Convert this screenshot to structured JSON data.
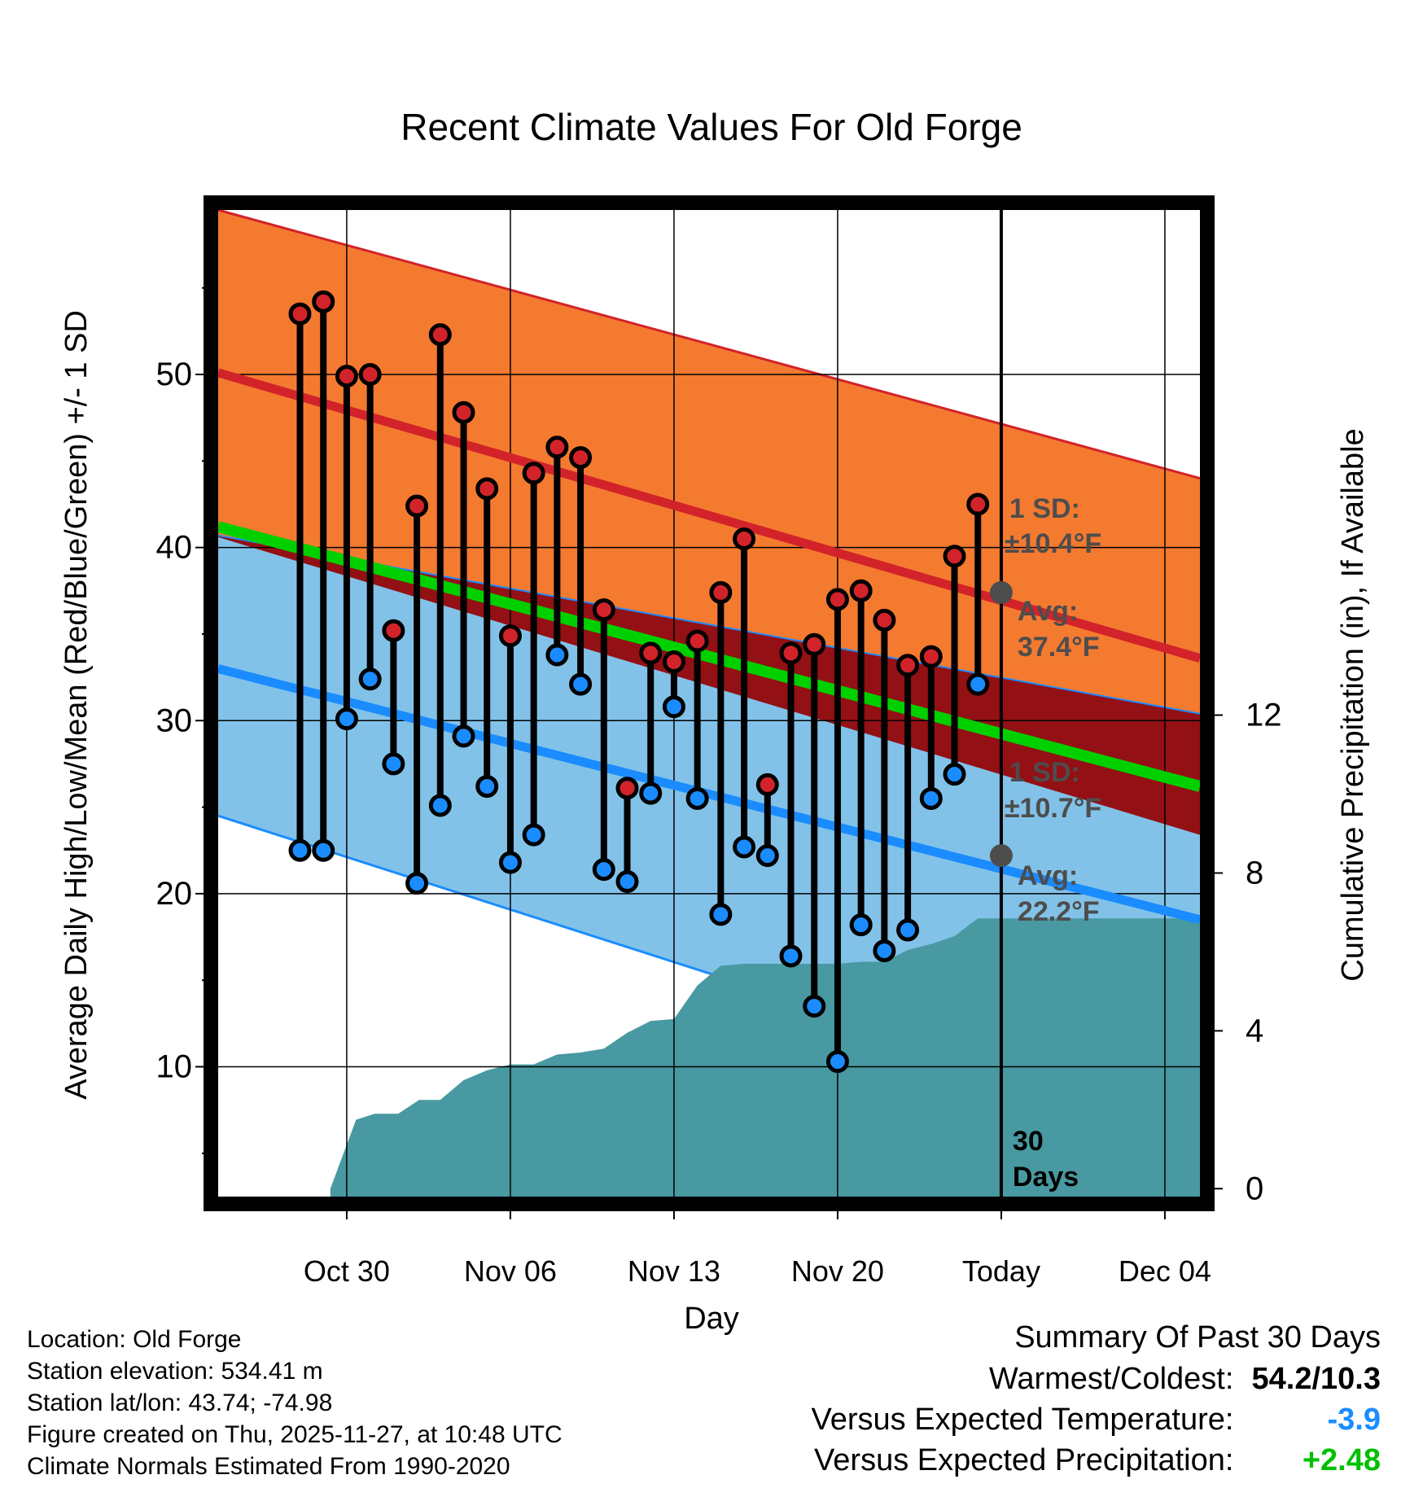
{
  "chart_data": {
    "type": "line",
    "title": "Recent Climate Values For Old Forge",
    "xlabel": "Day",
    "ylabel": "Average Daily High/Low/Mean (Red/Blue/Green) +/- 1 SD",
    "y2label": "Cumulative Precipitation (in), If Available",
    "x_day_range": [
      -33.5,
      8.5
    ],
    "ylim": [
      2.5,
      59.5
    ],
    "y_ticks": [
      "10",
      "20",
      "30",
      "40",
      "50"
    ],
    "y_tick_values": [
      10,
      20,
      30,
      40,
      50
    ],
    "y2lim": [
      -0.2,
      24.8
    ],
    "y2_ticks": [
      "0",
      "4",
      "8",
      "12"
    ],
    "y2_tick_values": [
      0,
      4,
      8,
      12
    ],
    "x_ticks": [
      "Oct 30",
      "Nov 06",
      "Nov 13",
      "Nov 20",
      "Today",
      "Dec 04"
    ],
    "x_tick_days": [
      -28,
      -21,
      -14,
      -7,
      0,
      7
    ],
    "normals": {
      "days": [
        -33.5,
        8.5
      ],
      "high_avg": [
        50.1,
        33.6
      ],
      "high_plus_sd": [
        59.5,
        44.0
      ],
      "low_avg": [
        33.0,
        18.5
      ],
      "low_minus_sd": [
        24.5,
        6.3
      ],
      "mean_avg": [
        41.2,
        26.2
      ],
      "high_minus_sd": [
        40.6,
        23.4
      ],
      "low_plus_sd": [
        40.7,
        30.4
      ]
    },
    "observations": {
      "days": [
        -30,
        -29,
        -28,
        -27,
        -26,
        -25,
        -24,
        -23,
        -22,
        -21,
        -20,
        -19,
        -18,
        -17,
        -16,
        -15,
        -14,
        -13,
        -12,
        -11,
        -10,
        -9,
        -8,
        -7,
        -6,
        -5,
        -4,
        -3,
        -2,
        -1
      ],
      "high": [
        53.5,
        54.2,
        49.9,
        50.0,
        35.2,
        42.4,
        52.3,
        47.8,
        43.4,
        34.9,
        44.3,
        45.8,
        45.2,
        36.4,
        26.1,
        33.9,
        33.4,
        34.6,
        37.4,
        40.5,
        26.3,
        33.9,
        34.4,
        37.0,
        37.5,
        35.8,
        33.2,
        33.7,
        39.5,
        42.5
      ],
      "low": [
        22.5,
        22.5,
        30.1,
        32.4,
        27.5,
        20.6,
        25.1,
        29.1,
        26.2,
        21.8,
        23.4,
        33.8,
        32.1,
        21.4,
        20.7,
        25.8,
        30.8,
        25.5,
        18.8,
        22.7,
        22.2,
        16.4,
        13.5,
        10.3,
        18.2,
        16.7,
        17.9,
        25.5,
        26.9,
        32.1
      ]
    },
    "precip_cumulative": {
      "days": [
        -28.7,
        -27.6,
        -26.8,
        -25.8,
        -24.9,
        -24.0,
        -23.0,
        -22.0,
        -21.0,
        -20.0,
        -19.0,
        -18.0,
        -17.0,
        -16.0,
        -15.0,
        -14.0,
        -13.0,
        -12.0,
        -11.0,
        -10.0,
        -9.0,
        -8.0,
        -7.0,
        -6.0,
        -5.0,
        -4.0,
        -3.0,
        -2.0,
        -1.0,
        8.5
      ],
      "inches": [
        0.0,
        1.75,
        1.9,
        1.9,
        2.25,
        2.25,
        2.75,
        3.0,
        3.15,
        3.15,
        3.4,
        3.45,
        3.55,
        3.95,
        4.25,
        4.3,
        5.15,
        5.65,
        5.7,
        5.7,
        5.7,
        5.7,
        5.7,
        5.75,
        5.75,
        6.05,
        6.2,
        6.4,
        6.85,
        6.85
      ]
    },
    "annotations": {
      "today_day": 0,
      "days_label_count": "30",
      "days_label_text": "Days",
      "high_sd_label": "1 SD:",
      "high_sd_value": "±10.4°F",
      "high_avg_label": "Avg:",
      "high_avg_value": "37.4°F",
      "high_avg_point": 37.4,
      "low_sd_label": "1 SD:",
      "low_sd_value": "±10.7°F",
      "low_avg_label": "Avg:",
      "low_avg_value": "22.2°F",
      "low_avg_point": 22.2
    },
    "colors": {
      "high_band": "#f47a30",
      "high_line": "#d2232a",
      "low_band": "#82c2e8",
      "low_line": "#1a8cff",
      "overlap_band": "#931015",
      "mean_line": "#00d000",
      "precip": "#4899a1",
      "high_marker": "#d2232a",
      "low_marker": "#1a8cff",
      "annotation": "#4d4d4d"
    }
  },
  "footer": {
    "location": "Location: Old Forge",
    "elevation": "Station elevation: 534.41 m",
    "latlon": "Station lat/lon: 43.74; -74.98",
    "created": "Figure created on Thu, 2025-11-27, at 10:48 UTC",
    "normals": "Climate Normals Estimated From 1990-2020"
  },
  "summary": {
    "title": "Summary Of Past 30 Days",
    "warmest_label": "Warmest/Coldest:",
    "warmest_value": "54.2/10.3",
    "temp_label": "Versus Expected Temperature:",
    "temp_value": "-3.9",
    "temp_color": "#1a8cff",
    "precip_label": "Versus Expected Precipitation:",
    "precip_value": "+2.48",
    "precip_color": "#00c000"
  }
}
